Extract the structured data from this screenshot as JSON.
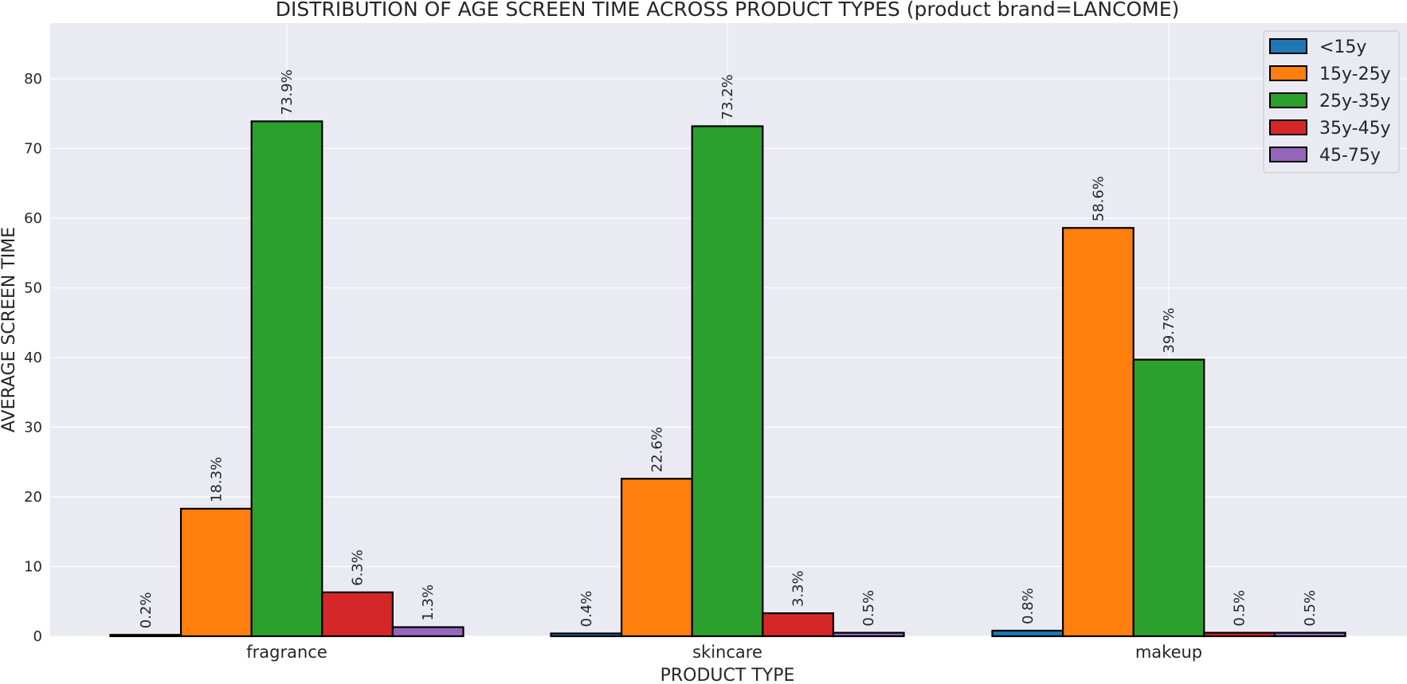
{
  "chart_data": {
    "type": "bar",
    "title": "DISTRIBUTION OF AGE SCREEN TIME ACROSS PRODUCT TYPES (product brand=LANCOME)",
    "xlabel": "PRODUCT TYPE",
    "ylabel": "AVERAGE SCREEN TIME",
    "categories": [
      "fragrance",
      "skincare",
      "makeup"
    ],
    "ylim": [
      0,
      88
    ],
    "yticks": [
      0,
      10,
      20,
      30,
      40,
      50,
      60,
      70,
      80
    ],
    "grid": true,
    "legend_position": "top-right",
    "series": [
      {
        "name": "<15y",
        "color": "#1f77b4",
        "values": [
          0.2,
          0.4,
          0.8
        ],
        "labels": [
          "0.2%",
          "0.4%",
          "0.8%"
        ]
      },
      {
        "name": "15y-25y",
        "color": "#ff7f0e",
        "values": [
          18.3,
          22.6,
          58.6
        ],
        "labels": [
          "18.3%",
          "22.6%",
          "58.6%"
        ]
      },
      {
        "name": "25y-35y",
        "color": "#2ca02c",
        "values": [
          73.9,
          73.2,
          39.7
        ],
        "labels": [
          "73.9%",
          "73.2%",
          "39.7%"
        ]
      },
      {
        "name": "35y-45y",
        "color": "#d62728",
        "values": [
          6.3,
          3.3,
          0.5
        ],
        "labels": [
          "6.3%",
          "3.3%",
          "0.5%"
        ]
      },
      {
        "name": "45-75y",
        "color": "#9467bd",
        "values": [
          1.3,
          0.5,
          0.5
        ],
        "labels": [
          "1.3%",
          "0.5%",
          "0.5%"
        ]
      }
    ]
  }
}
